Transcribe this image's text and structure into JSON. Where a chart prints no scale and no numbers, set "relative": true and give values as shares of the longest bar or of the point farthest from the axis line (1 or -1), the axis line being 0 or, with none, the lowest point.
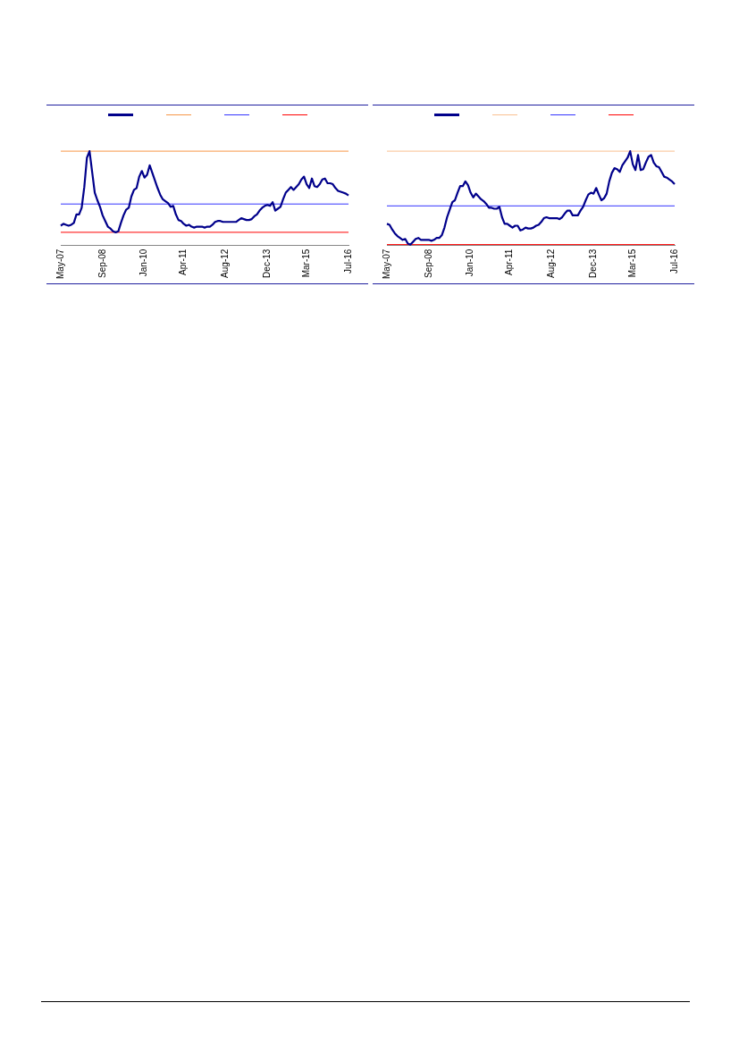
{
  "chart_data": [
    {
      "type": "line",
      "relative": true,
      "grid": false,
      "marker": "none",
      "line_style": "solid",
      "categories": [
        "May-07",
        null,
        null,
        null,
        null,
        null,
        null,
        null,
        null,
        null,
        null,
        null,
        null,
        null,
        null,
        null,
        "Sep-08",
        null,
        null,
        null,
        null,
        null,
        null,
        null,
        null,
        null,
        null,
        null,
        null,
        null,
        null,
        null,
        "Jan-10",
        null,
        null,
        null,
        null,
        null,
        null,
        null,
        null,
        null,
        null,
        null,
        null,
        null,
        null,
        "Apr-11",
        null,
        null,
        null,
        null,
        null,
        null,
        null,
        null,
        null,
        null,
        null,
        null,
        null,
        null,
        null,
        "Aug-12",
        null,
        null,
        null,
        null,
        null,
        null,
        null,
        null,
        null,
        null,
        null,
        null,
        null,
        null,
        null,
        "Dec-13",
        null,
        null,
        null,
        null,
        null,
        null,
        null,
        null,
        null,
        null,
        null,
        null,
        null,
        null,
        "Mar-15",
        null,
        null,
        null,
        null,
        null,
        null,
        null,
        null,
        null,
        null,
        null,
        null,
        null,
        null,
        null,
        "Jul-16"
      ],
      "series": [
        {
          "color": "#00008b",
          "values": [
            0.21,
            0.23,
            0.22,
            0.21,
            0.22,
            0.24,
            0.33,
            0.33,
            0.4,
            0.62,
            0.93,
            1.0,
            0.78,
            0.56,
            0.48,
            0.41,
            0.32,
            0.26,
            0.2,
            0.18,
            0.15,
            0.14,
            0.15,
            0.24,
            0.32,
            0.38,
            0.4,
            0.52,
            0.59,
            0.61,
            0.73,
            0.79,
            0.72,
            0.75,
            0.85,
            0.77,
            0.69,
            0.61,
            0.54,
            0.49,
            0.47,
            0.45,
            0.41,
            0.42,
            0.33,
            0.27,
            0.26,
            0.23,
            0.21,
            0.22,
            0.2,
            0.19,
            0.2,
            0.2,
            0.2,
            0.19,
            0.2,
            0.2,
            0.22,
            0.25,
            0.26,
            0.26,
            0.25,
            0.25,
            0.25,
            0.25,
            0.25,
            0.25,
            0.27,
            0.29,
            0.28,
            0.27,
            0.27,
            0.28,
            0.31,
            0.33,
            0.37,
            0.4,
            0.42,
            0.43,
            0.42,
            0.46,
            0.37,
            0.39,
            0.41,
            0.49,
            0.56,
            0.59,
            0.62,
            0.59,
            0.62,
            0.65,
            0.7,
            0.73,
            0.65,
            0.61,
            0.71,
            0.63,
            0.62,
            0.65,
            0.7,
            0.71,
            0.66,
            0.66,
            0.65,
            0.61,
            0.58,
            0.57,
            0.56,
            0.55,
            0.53
          ]
        }
      ],
      "ref_lines": [
        {
          "axis": "y",
          "value": 1,
          "color": "#f79646"
        },
        {
          "axis": "y",
          "value": 0.44,
          "color": "#3333ff"
        },
        {
          "axis": "y",
          "value": 0.14,
          "color": "#ff0000"
        }
      ]
    },
    {
      "type": "line",
      "relative": true,
      "grid": false,
      "marker": "none",
      "line_style": "solid",
      "categories": [
        "May-07",
        null,
        null,
        null,
        null,
        null,
        null,
        null,
        null,
        null,
        null,
        null,
        null,
        null,
        null,
        null,
        "Sep-08",
        null,
        null,
        null,
        null,
        null,
        null,
        null,
        null,
        null,
        null,
        null,
        null,
        null,
        null,
        null,
        "Jan-10",
        null,
        null,
        null,
        null,
        null,
        null,
        null,
        null,
        null,
        null,
        null,
        null,
        null,
        null,
        "Apr-11",
        null,
        null,
        null,
        null,
        null,
        null,
        null,
        null,
        null,
        null,
        null,
        null,
        null,
        null,
        null,
        "Aug-12",
        null,
        null,
        null,
        null,
        null,
        null,
        null,
        null,
        null,
        null,
        null,
        null,
        null,
        null,
        null,
        "Dec-13",
        null,
        null,
        null,
        null,
        null,
        null,
        null,
        null,
        null,
        null,
        null,
        null,
        null,
        null,
        "Mar-15",
        null,
        null,
        null,
        null,
        null,
        null,
        null,
        null,
        null,
        null,
        null,
        null,
        null,
        null,
        null,
        "Jul-16"
      ],
      "series": [
        {
          "color": "#00008b",
          "values": [
            0.23,
            0.22,
            0.17,
            0.13,
            0.1,
            0.08,
            0.06,
            0.07,
            0.02,
            0.01,
            0.04,
            0.07,
            0.08,
            0.06,
            0.06,
            0.06,
            0.06,
            0.05,
            0.06,
            0.08,
            0.08,
            0.11,
            0.19,
            0.3,
            0.38,
            0.46,
            0.48,
            0.56,
            0.63,
            0.63,
            0.68,
            0.64,
            0.56,
            0.51,
            0.55,
            0.52,
            0.49,
            0.47,
            0.44,
            0.4,
            0.4,
            0.39,
            0.39,
            0.41,
            0.3,
            0.23,
            0.23,
            0.21,
            0.19,
            0.21,
            0.21,
            0.16,
            0.17,
            0.19,
            0.18,
            0.18,
            0.19,
            0.21,
            0.22,
            0.25,
            0.29,
            0.3,
            0.29,
            0.29,
            0.29,
            0.29,
            0.28,
            0.3,
            0.34,
            0.37,
            0.37,
            0.32,
            0.32,
            0.32,
            0.37,
            0.41,
            0.48,
            0.54,
            0.56,
            0.55,
            0.61,
            0.54,
            0.48,
            0.5,
            0.55,
            0.68,
            0.77,
            0.82,
            0.81,
            0.78,
            0.85,
            0.89,
            0.93,
            1.0,
            0.86,
            0.8,
            0.96,
            0.8,
            0.81,
            0.88,
            0.94,
            0.96,
            0.88,
            0.84,
            0.83,
            0.78,
            0.73,
            0.72,
            0.7,
            0.68,
            0.65
          ]
        }
      ],
      "ref_lines": [
        {
          "axis": "y",
          "value": 1,
          "color": "#fac090"
        },
        {
          "axis": "y",
          "value": 0.42,
          "color": "#3333ff"
        },
        {
          "axis": "y",
          "value": 0.01,
          "color": "#ff0000"
        }
      ]
    }
  ]
}
